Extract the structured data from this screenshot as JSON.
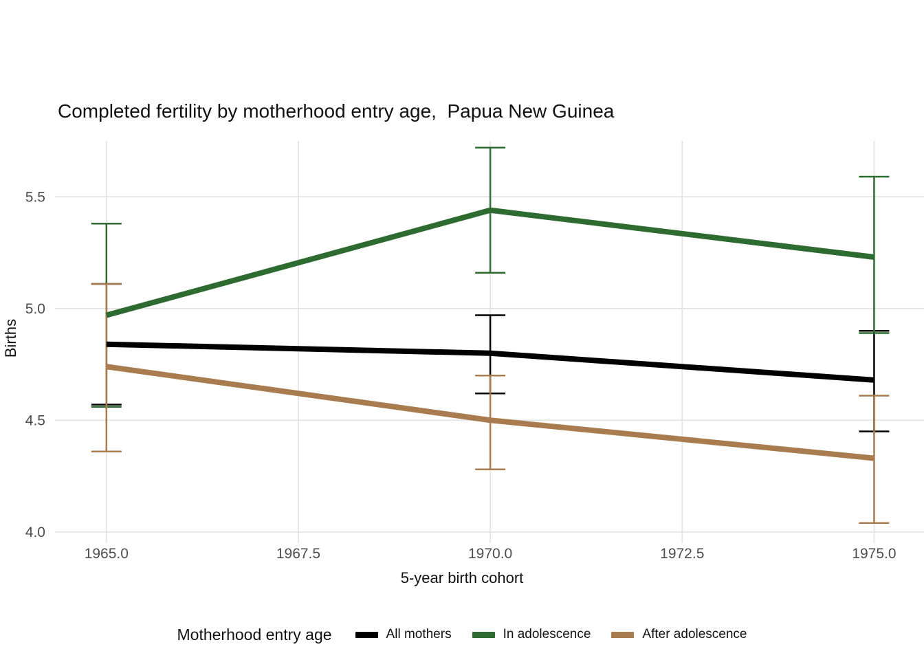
{
  "chart_data": {
    "type": "line",
    "title": "Completed fertility by motherhood entry age,  Papua New Guinea",
    "xlabel": "5-year birth cohort",
    "ylabel": "Births",
    "legend_title": "Motherhood entry age",
    "legend_position": "bottom",
    "grid": true,
    "background": "#ffffff",
    "gridline_color": "#e4e4e4",
    "x": [
      1965,
      1970,
      1975
    ],
    "xticks": {
      "values": [
        1965.0,
        1967.5,
        1970.0,
        1972.5,
        1975.0
      ],
      "labels": [
        "1965.0",
        "1967.5",
        "1970.0",
        "1972.5",
        "1975.0"
      ]
    },
    "yticks": {
      "values": [
        4.0,
        4.5,
        5.0,
        5.5
      ],
      "labels": [
        "4.0",
        "4.5",
        "5.0",
        "5.5"
      ]
    },
    "xlim": [
      1964.33,
      1975.65
    ],
    "ylim": [
      3.95,
      5.75
    ],
    "series": [
      {
        "name": "All mothers",
        "color": "#000000",
        "y": [
          4.84,
          4.8,
          4.68
        ],
        "ymin": [
          4.57,
          4.62,
          4.45
        ],
        "ymax": [
          5.11,
          4.97,
          4.9
        ]
      },
      {
        "name": "In adolescence",
        "color": "#2e6b30",
        "y": [
          4.97,
          5.44,
          5.23
        ],
        "ymin": [
          4.56,
          5.16,
          4.89
        ],
        "ymax": [
          5.38,
          5.72,
          5.59
        ]
      },
      {
        "name": "After adolescence",
        "color": "#a87c4e",
        "y": [
          4.74,
          4.5,
          4.33
        ],
        "ymin": [
          4.36,
          4.28,
          4.04
        ],
        "ymax": [
          5.11,
          4.7,
          4.61
        ]
      }
    ]
  }
}
